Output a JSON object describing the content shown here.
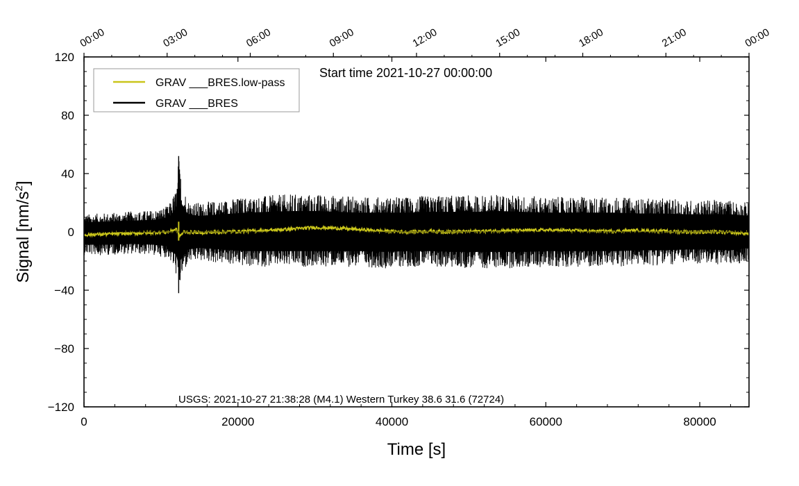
{
  "chart_data": {
    "type": "line",
    "title": "",
    "annotations": {
      "start_time": "Start time 2021-10-27 00:00:00",
      "event": "USGS: 2021-10-27 21:38:28 (M4.1) Western Turkey 38.6 31.6 (72724)"
    },
    "xlabel": "Time [s]",
    "ylabel_main": "Signal [nm/s",
    "ylabel_sup": "2",
    "ylabel_close": "]",
    "xlim": [
      0,
      86400
    ],
    "ylim": [
      -120,
      120
    ],
    "x_ticks": [
      0,
      20000,
      40000,
      60000,
      80000
    ],
    "x_tick_labels": [
      "0",
      "20000",
      "40000",
      "60000",
      "80000"
    ],
    "y_ticks": [
      -120,
      -80,
      -40,
      0,
      40,
      80,
      120
    ],
    "y_tick_labels": [
      "−120",
      "−80",
      "−40",
      "0",
      "40",
      "80",
      "120"
    ],
    "top_axis": {
      "ticks_s": [
        0,
        10800,
        21600,
        32400,
        43200,
        54000,
        64800,
        75600,
        86400
      ],
      "labels": [
        "00:00",
        "03:00",
        "06:00",
        "09:00",
        "12:00",
        "15:00",
        "18:00",
        "21:00",
        "00:00"
      ]
    },
    "grid": false,
    "legend_position": "top-left",
    "series": [
      {
        "name": "GRAV ___BRES.low-pass",
        "color": "#c9c51a",
        "role": "low-pass",
        "x": [
          0,
          3000,
          6000,
          9000,
          11000,
          12000,
          12400,
          13000,
          15000,
          18000,
          21000,
          24000,
          27000,
          30000,
          33000,
          36000,
          39000,
          42000,
          45000,
          48000,
          51000,
          54000,
          57000,
          60000,
          63000,
          66000,
          69000,
          72000,
          75000,
          78000,
          81000,
          84000,
          86400
        ],
        "y": [
          -2,
          -1.5,
          -1,
          -0.5,
          0,
          2,
          -3,
          0,
          -0.5,
          0,
          0.5,
          1,
          2,
          3,
          2.5,
          1.5,
          0.5,
          0,
          0.5,
          0,
          0.5,
          0.8,
          1,
          1.2,
          1,
          0.5,
          0.5,
          1,
          0.5,
          0,
          0,
          -0.5,
          -1
        ],
        "spike": {
          "x": 12300,
          "min": -6,
          "max": 7
        }
      },
      {
        "name": "GRAV ___BRES",
        "color": "#000000",
        "role": "raw",
        "x": [
          0,
          3000,
          6000,
          9000,
          11000,
          12000,
          12300,
          12700,
          13500,
          15000,
          18000,
          21000,
          24000,
          27000,
          30000,
          33000,
          36000,
          39000,
          42000,
          45000,
          48000,
          51000,
          54000,
          57000,
          60000,
          63000,
          66000,
          69000,
          72000,
          75000,
          78000,
          81000,
          84000,
          86400
        ],
        "y_max": [
          12,
          13,
          14,
          15,
          18,
          30,
          52,
          35,
          22,
          20,
          22,
          24,
          25,
          26,
          26,
          25,
          24,
          24,
          24,
          25,
          25,
          25,
          26,
          25,
          24,
          24,
          24,
          24,
          23,
          23,
          22,
          22,
          22,
          20
        ],
        "y_min": [
          -16,
          -16,
          -15,
          -16,
          -18,
          -30,
          -42,
          -32,
          -22,
          -20,
          -22,
          -24,
          -24,
          -24,
          -24,
          -24,
          -24,
          -25,
          -24,
          -24,
          -25,
          -25,
          -25,
          -25,
          -24,
          -24,
          -24,
          -24,
          -23,
          -23,
          -22,
          -22,
          -23,
          -20
        ],
        "spike": {
          "x": 12300,
          "min": -42,
          "max": 52
        }
      }
    ]
  }
}
